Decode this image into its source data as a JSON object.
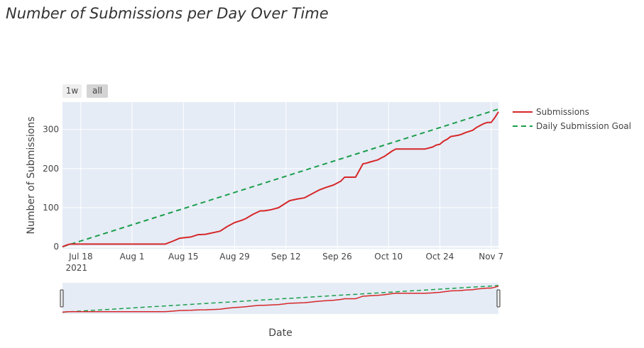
{
  "chart_data": {
    "type": "line",
    "title": "Number of Submissions per Day Over Time",
    "xlabel": "Date",
    "ylabel": "Number of Submissions",
    "x_range": [
      "2021-07-13",
      "2021-11-09"
    ],
    "y_range": [
      -5,
      370
    ],
    "x_ticks": [
      {
        "date": "2021-07-18",
        "label": "Jul 18",
        "sublabel": "2021"
      },
      {
        "date": "2021-08-01",
        "label": "Aug 1"
      },
      {
        "date": "2021-08-15",
        "label": "Aug 15"
      },
      {
        "date": "2021-08-29",
        "label": "Aug 29"
      },
      {
        "date": "2021-09-12",
        "label": "Sep 12"
      },
      {
        "date": "2021-09-26",
        "label": "Sep 26"
      },
      {
        "date": "2021-10-10",
        "label": "Oct 10"
      },
      {
        "date": "2021-10-24",
        "label": "Oct 24"
      },
      {
        "date": "2021-11-07",
        "label": "Nov 7"
      }
    ],
    "y_ticks": [
      0,
      100,
      200,
      300
    ],
    "grid": true,
    "legend_position": "right",
    "range_selector": [
      "1w",
      "all"
    ],
    "range_slider": true,
    "series": [
      {
        "name": "Submissions",
        "color": "#d62728",
        "dash": "solid",
        "points": [
          [
            "2021-07-13",
            0
          ],
          [
            "2021-07-14",
            4
          ],
          [
            "2021-07-15",
            7
          ],
          [
            "2021-07-22",
            7
          ],
          [
            "2021-08-01",
            7
          ],
          [
            "2021-08-10",
            7
          ],
          [
            "2021-08-12",
            14
          ],
          [
            "2021-08-14",
            22
          ],
          [
            "2021-08-17",
            25
          ],
          [
            "2021-08-19",
            31
          ],
          [
            "2021-08-21",
            32
          ],
          [
            "2021-08-25",
            40
          ],
          [
            "2021-08-27",
            52
          ],
          [
            "2021-08-29",
            62
          ],
          [
            "2021-08-31",
            68
          ],
          [
            "2021-09-01",
            72
          ],
          [
            "2021-09-03",
            83
          ],
          [
            "2021-09-05",
            92
          ],
          [
            "2021-09-06",
            92
          ],
          [
            "2021-09-08",
            95
          ],
          [
            "2021-09-10",
            100
          ],
          [
            "2021-09-12",
            112
          ],
          [
            "2021-09-13",
            118
          ],
          [
            "2021-09-15",
            122
          ],
          [
            "2021-09-17",
            125
          ],
          [
            "2021-09-19",
            135
          ],
          [
            "2021-09-20",
            140
          ],
          [
            "2021-09-21",
            145
          ],
          [
            "2021-09-23",
            152
          ],
          [
            "2021-09-25",
            158
          ],
          [
            "2021-09-27",
            168
          ],
          [
            "2021-09-28",
            178
          ],
          [
            "2021-10-01",
            178
          ],
          [
            "2021-10-03",
            212
          ],
          [
            "2021-10-04",
            214
          ],
          [
            "2021-10-05",
            217
          ],
          [
            "2021-10-07",
            222
          ],
          [
            "2021-10-08",
            227
          ],
          [
            "2021-10-09",
            232
          ],
          [
            "2021-10-11",
            245
          ],
          [
            "2021-10-12",
            250
          ],
          [
            "2021-10-20",
            250
          ],
          [
            "2021-10-22",
            255
          ],
          [
            "2021-10-23",
            260
          ],
          [
            "2021-10-24",
            262
          ],
          [
            "2021-10-25",
            270
          ],
          [
            "2021-10-26",
            275
          ],
          [
            "2021-10-27",
            282
          ],
          [
            "2021-10-29",
            285
          ],
          [
            "2021-10-30",
            288
          ],
          [
            "2021-10-31",
            292
          ],
          [
            "2021-11-01",
            295
          ],
          [
            "2021-11-02",
            298
          ],
          [
            "2021-11-03",
            305
          ],
          [
            "2021-11-05",
            315
          ],
          [
            "2021-11-06",
            318
          ],
          [
            "2021-11-07",
            318
          ],
          [
            "2021-11-08",
            330
          ],
          [
            "2021-11-09",
            345
          ]
        ]
      },
      {
        "name": "Daily Submission Goal",
        "color": "#1b9e4b",
        "dash": "dashed",
        "points": [
          [
            "2021-07-13",
            0
          ],
          [
            "2021-11-09",
            352
          ]
        ]
      }
    ]
  }
}
